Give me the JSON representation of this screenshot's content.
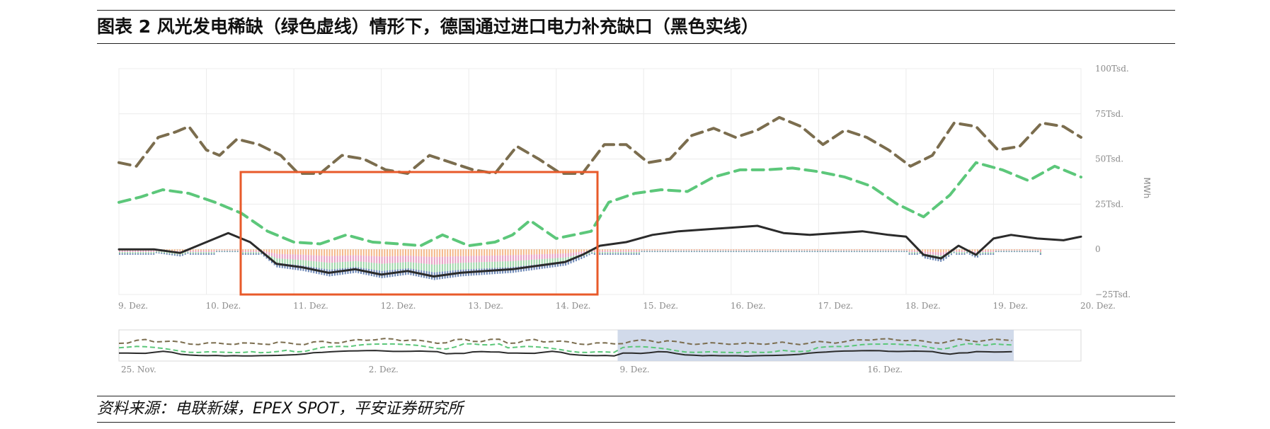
{
  "header": {
    "title": "图表 2 风光发电稀缺（绿色虚线）情形下，德国通过进口电力补充缺口（黑色实线）"
  },
  "footer": {
    "source": "资料来源：电联新媒，EPEX SPOT，平安证券研究所"
  },
  "colors": {
    "load_dashed": "#7b6d4e",
    "renewables_dashed": "#5cc77a",
    "net_import_line": "#2b2b2b",
    "highlight_box": "#e85a2a",
    "navigator_selection": "#c9d3e6",
    "stack_blue": "#3b5f9e",
    "stack_orange": "#f0a060",
    "stack_pink": "#e07fb0",
    "stack_green": "#7fc98e"
  },
  "chart_data": {
    "type": "line",
    "title": "",
    "xlabel": "",
    "ylabel": "MWh",
    "y_ticks": [
      "100Tsd.",
      "75Tsd.",
      "50Tsd.",
      "25Tsd.",
      "0",
      "−25Tsd."
    ],
    "x_ticks": [
      "9. Dez.",
      "10. Dez.",
      "11. Dez.",
      "12. Dez.",
      "13. Dez.",
      "14. Dez.",
      "15. Dez.",
      "16. Dez.",
      "17. Dez.",
      "18. Dez.",
      "19. Dez.",
      "20. Dez."
    ],
    "ylim": [
      -25000,
      100000
    ],
    "xlim_days": [
      9,
      20
    ],
    "grid": true,
    "legend": "none",
    "series": [
      {
        "style": "dashed",
        "color_key": "load_dashed",
        "x": [
          9.0,
          9.2,
          9.45,
          9.65,
          9.8,
          10.0,
          10.15,
          10.35,
          10.6,
          10.85,
          11.05,
          11.3,
          11.55,
          11.8,
          12.05,
          12.3,
          12.55,
          12.8,
          13.05,
          13.3,
          13.55,
          13.8,
          14.05,
          14.3,
          14.55,
          14.8,
          15.05,
          15.3,
          15.55,
          15.8,
          16.05,
          16.3,
          16.55,
          16.8,
          17.05,
          17.3,
          17.55,
          17.8,
          18.05,
          18.3,
          18.55,
          18.8,
          19.05,
          19.3,
          19.55,
          19.8,
          20.0
        ],
        "y": [
          48000,
          46000,
          62000,
          65000,
          68000,
          55000,
          52000,
          61000,
          58000,
          52000,
          42000,
          42000,
          52000,
          50000,
          44000,
          42000,
          52000,
          48000,
          44000,
          42000,
          57000,
          50000,
          42000,
          42000,
          58000,
          58000,
          48000,
          50000,
          63000,
          67000,
          62000,
          66000,
          73000,
          68000,
          58000,
          66000,
          62000,
          55000,
          46000,
          52000,
          70000,
          68000,
          55000,
          57000,
          70000,
          68000,
          62000
        ]
      },
      {
        "style": "dashed",
        "color_key": "renewables_dashed",
        "x": [
          9.0,
          9.25,
          9.5,
          9.8,
          10.1,
          10.4,
          10.7,
          11.0,
          11.3,
          11.6,
          11.9,
          12.2,
          12.45,
          12.7,
          13.0,
          13.3,
          13.5,
          13.7,
          14.0,
          14.2,
          14.4,
          14.6,
          14.9,
          15.2,
          15.5,
          15.8,
          16.1,
          16.4,
          16.7,
          17.0,
          17.3,
          17.6,
          17.9,
          18.2,
          18.5,
          18.8,
          19.1,
          19.4,
          19.7,
          20.0
        ],
        "y": [
          26000,
          29000,
          33000,
          31000,
          26000,
          20000,
          10000,
          4000,
          3000,
          8000,
          4000,
          3000,
          2000,
          8000,
          2000,
          4000,
          8000,
          16000,
          6000,
          8000,
          10000,
          26000,
          31000,
          33000,
          32000,
          40000,
          44000,
          44000,
          45000,
          43000,
          40000,
          35000,
          25000,
          18000,
          30000,
          48000,
          44000,
          38000,
          46000,
          40000
        ]
      },
      {
        "style": "solid",
        "color_key": "net_import_line",
        "x": [
          9.0,
          9.4,
          9.7,
          10.0,
          10.25,
          10.5,
          10.8,
          11.1,
          11.4,
          11.7,
          12.0,
          12.3,
          12.6,
          12.9,
          13.2,
          13.5,
          13.8,
          14.1,
          14.3,
          14.5,
          14.8,
          15.1,
          15.4,
          15.7,
          16.0,
          16.3,
          16.6,
          16.9,
          17.2,
          17.5,
          17.8,
          18.0,
          18.2,
          18.4,
          18.6,
          18.8,
          19.0,
          19.2,
          19.5,
          19.8,
          20.0
        ],
        "y": [
          0,
          0,
          -2000,
          4000,
          9000,
          4000,
          -8000,
          -10000,
          -13000,
          -11000,
          -14000,
          -12000,
          -15000,
          -13000,
          -12000,
          -11000,
          -9000,
          -7000,
          -3000,
          2000,
          4000,
          8000,
          10000,
          11000,
          12000,
          13000,
          9000,
          8000,
          9000,
          10000,
          8000,
          7000,
          -3000,
          -5000,
          2000,
          -3000,
          6000,
          8000,
          6000,
          5000,
          7000
        ]
      }
    ],
    "navigator": {
      "x_ticks": [
        "25. Nov.",
        "2. Dez.",
        "9. Dez.",
        "16. Dez."
      ]
    }
  }
}
